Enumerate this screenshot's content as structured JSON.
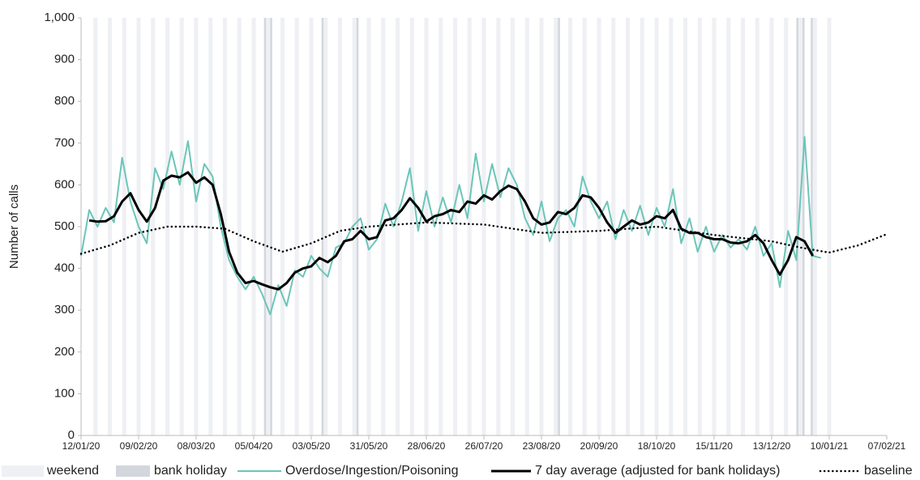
{
  "chart_data": {
    "type": "line",
    "y_label": "Number of calls",
    "xlim": [
      "12/01/20",
      "07/02/21"
    ],
    "xticks": [
      "12/01/20",
      "09/02/20",
      "08/03/20",
      "05/04/20",
      "03/05/20",
      "31/05/20",
      "28/06/20",
      "26/07/20",
      "23/08/20",
      "20/09/20",
      "18/10/20",
      "15/11/20",
      "13/12/20",
      "10/01/21",
      "07/02/21"
    ],
    "ylim": [
      0,
      1000
    ],
    "yticks": [
      0,
      100,
      200,
      300,
      400,
      500,
      600,
      700,
      800,
      900,
      {
        "value": 1000,
        "label": "1,000"
      }
    ],
    "weekend": {
      "name": "weekend",
      "color": "#eef0f3",
      "dates": [
        "18/01/20",
        "25/01/20",
        "01/02/20",
        "08/02/20",
        "15/02/20",
        "22/02/20",
        "29/02/20",
        "07/03/20",
        "14/03/20",
        "21/03/20",
        "28/03/20",
        "04/04/20",
        "11/04/20",
        "18/04/20",
        "25/04/20",
        "02/05/20",
        "09/05/20",
        "16/05/20",
        "23/05/20",
        "30/05/20",
        "06/06/20",
        "13/06/20",
        "20/06/20",
        "27/06/20",
        "04/07/20",
        "11/07/20",
        "18/07/20",
        "25/07/20",
        "01/08/20",
        "08/08/20",
        "15/08/20",
        "22/08/20",
        "29/08/20",
        "05/09/20",
        "12/09/20",
        "19/09/20",
        "26/09/20",
        "03/10/20",
        "10/10/20",
        "17/10/20",
        "24/10/20",
        "31/10/20",
        "07/11/20",
        "14/11/20",
        "21/11/20",
        "28/11/20",
        "05/12/20",
        "12/12/20",
        "19/12/20",
        "26/12/20",
        "02/01/21",
        "09/01/21"
      ]
    },
    "bank_holiday": {
      "name": "bank holiday",
      "color": "#d3d7dd",
      "dates": [
        "10/04/20",
        "13/04/20",
        "08/05/20",
        "25/05/20",
        "31/08/20",
        "25/12/20",
        "28/12/20",
        "01/01/21"
      ]
    },
    "x": [
      "12/01/20",
      "16/01/20",
      "20/01/20",
      "24/01/20",
      "28/01/20",
      "01/02/20",
      "05/02/20",
      "09/02/20",
      "13/02/20",
      "17/02/20",
      "21/02/20",
      "25/02/20",
      "29/02/20",
      "04/03/20",
      "08/03/20",
      "12/03/20",
      "16/03/20",
      "20/03/20",
      "24/03/20",
      "28/03/20",
      "01/04/20",
      "05/04/20",
      "09/04/20",
      "13/04/20",
      "17/04/20",
      "21/04/20",
      "25/04/20",
      "29/04/20",
      "03/05/20",
      "07/05/20",
      "11/05/20",
      "15/05/20",
      "19/05/20",
      "23/05/20",
      "27/05/20",
      "31/05/20",
      "04/06/20",
      "08/06/20",
      "12/06/20",
      "16/06/20",
      "20/06/20",
      "24/06/20",
      "28/06/20",
      "02/07/20",
      "06/07/20",
      "10/07/20",
      "14/07/20",
      "18/07/20",
      "22/07/20",
      "26/07/20",
      "30/07/20",
      "03/08/20",
      "07/08/20",
      "11/08/20",
      "15/08/20",
      "19/08/20",
      "23/08/20",
      "27/08/20",
      "31/08/20",
      "04/09/20",
      "08/09/20",
      "12/09/20",
      "16/09/20",
      "20/09/20",
      "24/09/20",
      "28/09/20",
      "02/10/20",
      "06/10/20",
      "10/10/20",
      "14/10/20",
      "18/10/20",
      "22/10/20",
      "26/10/20",
      "30/10/20",
      "03/11/20",
      "07/11/20",
      "11/11/20",
      "15/11/20",
      "19/11/20",
      "23/11/20",
      "27/11/20",
      "01/12/20",
      "05/12/20",
      "09/12/20",
      "13/12/20",
      "17/12/20",
      "21/12/20",
      "25/12/20",
      "29/12/20",
      "02/01/21",
      "06/01/21"
    ],
    "series": [
      {
        "name": "Overdose/Ingestion/Poisoning",
        "color": "#6cc5b9",
        "values": [
          430,
          540,
          500,
          545,
          510,
          665,
          560,
          500,
          460,
          640,
          590,
          680,
          600,
          705,
          560,
          650,
          620,
          500,
          420,
          380,
          350,
          380,
          340,
          290,
          360,
          310,
          395,
          380,
          430,
          400,
          380,
          450,
          460,
          500,
          520,
          445,
          470,
          555,
          500,
          560,
          640,
          490,
          585,
          500,
          570,
          510,
          600,
          520,
          675,
          560,
          650,
          570,
          640,
          600,
          520,
          480,
          560,
          465,
          520,
          540,
          500,
          620,
          560,
          520,
          560,
          470,
          540,
          490,
          550,
          480,
          545,
          500,
          590,
          460,
          520,
          440,
          500,
          440,
          480,
          450,
          470,
          445,
          500,
          430,
          460,
          355,
          490,
          420,
          715,
          430,
          425
        ]
      },
      {
        "name": "7 day average (adjusted for bank holidays)",
        "color": "#000000",
        "values": [
          null,
          515,
          512,
          513,
          525,
          560,
          580,
          540,
          512,
          545,
          610,
          622,
          618,
          630,
          605,
          618,
          600,
          530,
          440,
          390,
          365,
          370,
          362,
          355,
          350,
          365,
          390,
          400,
          405,
          425,
          415,
          430,
          465,
          470,
          490,
          470,
          475,
          515,
          520,
          540,
          568,
          545,
          512,
          525,
          530,
          540,
          535,
          560,
          555,
          575,
          565,
          585,
          598,
          590,
          560,
          520,
          505,
          510,
          535,
          530,
          545,
          575,
          570,
          545,
          510,
          485,
          500,
          515,
          505,
          510,
          525,
          520,
          540,
          495,
          485,
          485,
          475,
          470,
          470,
          462,
          460,
          465,
          480,
          460,
          420,
          385,
          420,
          475,
          465,
          430,
          null
        ]
      },
      {
        "name": "baseline",
        "color": "#000000",
        "dotted": true,
        "x": [
          "12/01/20",
          "26/01/20",
          "09/02/20",
          "23/02/20",
          "08/03/20",
          "22/03/20",
          "05/04/20",
          "19/04/20",
          "03/05/20",
          "17/05/20",
          "31/05/20",
          "28/06/20",
          "26/07/20",
          "23/08/20",
          "20/09/20",
          "18/10/20",
          "15/11/20",
          "13/12/20",
          "27/12/20",
          "10/01/21",
          "24/01/21",
          "07/02/21"
        ],
        "values": [
          435,
          455,
          485,
          500,
          500,
          495,
          465,
          440,
          460,
          490,
          500,
          510,
          505,
          485,
          490,
          500,
          480,
          465,
          450,
          438,
          455,
          482
        ]
      }
    ]
  }
}
